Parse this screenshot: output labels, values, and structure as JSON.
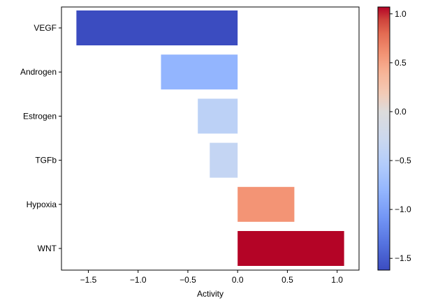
{
  "chart_data": {
    "type": "bar",
    "orientation": "horizontal",
    "categories": [
      "VEGF",
      "Androgen",
      "Estrogen",
      "TGFb",
      "Hypoxia",
      "WNT"
    ],
    "values": [
      -1.62,
      -0.77,
      -0.4,
      -0.28,
      0.57,
      1.07
    ],
    "colors": [
      "#3b4cc0",
      "#93b5fe",
      "#bcd1f6",
      "#c4d5f3",
      "#f39475",
      "#b40426"
    ],
    "xlabel": "Activity",
    "ylabel": "",
    "xlim": [
      -1.77,
      1.22
    ],
    "xticks": [
      -1.5,
      -1.0,
      -0.5,
      0.0,
      0.5,
      1.0
    ],
    "xtick_labels": [
      "−1.5",
      "−1.0",
      "−0.5",
      "0.0",
      "0.5",
      "1.0"
    ],
    "grid": false,
    "colorbar": {
      "cmap": "coolwarm",
      "range": [
        -1.62,
        1.07
      ],
      "center": 0,
      "ticks": [
        1.0,
        0.5,
        0.0,
        -0.5,
        -1.0,
        -1.5
      ],
      "tick_labels": [
        "1.0",
        "0.5",
        "0.0",
        "−0.5",
        "−1.0",
        "−1.5"
      ]
    }
  }
}
